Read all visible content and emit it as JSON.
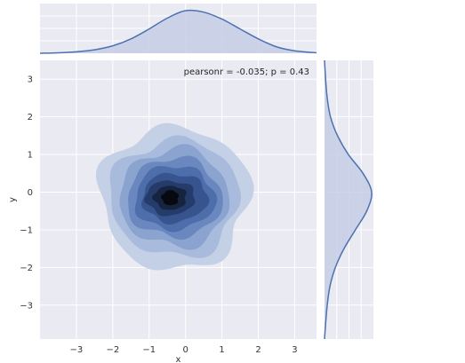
{
  "chart_data": {
    "type": "kde_joint",
    "annotation": "pearsonr = -0.035; p = 0.43",
    "xlabel": "x",
    "ylabel": "y",
    "xlim": [
      -4,
      3.6
    ],
    "ylim": [
      -3.9,
      3.5
    ],
    "x_ticks": [
      -3,
      -2,
      -1,
      0,
      1,
      2,
      3
    ],
    "y_ticks": [
      -3,
      -2,
      -1,
      0,
      1,
      2,
      3
    ],
    "grid": true,
    "colors": {
      "panel_bg": "#eaeaf2",
      "grid": "#ffffff",
      "line": "#4c72b0",
      "fill": "#c5cde5",
      "levels": [
        "#c4d0e6",
        "#a9bbdc",
        "#8aa3cf",
        "#6a88bf",
        "#4d6eaa",
        "#37548e",
        "#253c6b",
        "#16243f",
        "#06090f"
      ]
    },
    "joint_kde": {
      "center": [
        -0.3,
        -0.15
      ],
      "levels_radii": [
        {
          "rx": 2.05,
          "ry": 1.9
        },
        {
          "rx": 1.78,
          "ry": 1.55
        },
        {
          "rx": 1.5,
          "ry": 1.3
        },
        {
          "rx": 1.3,
          "ry": 1.05
        },
        {
          "rx": 1.1,
          "ry": 0.85
        },
        {
          "rx": 0.9,
          "ry": 0.65
        },
        {
          "rx": 0.68,
          "ry": 0.46
        },
        {
          "rx": 0.45,
          "ry": 0.32
        },
        {
          "rx": 0.23,
          "ry": 0.2
        }
      ]
    },
    "marginal_x": {
      "x": [
        -4.0,
        -3.5,
        -3.0,
        -2.5,
        -2.0,
        -1.5,
        -1.0,
        -0.5,
        0.0,
        0.5,
        1.0,
        1.5,
        2.0,
        2.5,
        3.0,
        3.6
      ],
      "density": [
        0.0,
        0.01,
        0.03,
        0.07,
        0.15,
        0.29,
        0.49,
        0.71,
        0.86,
        0.83,
        0.69,
        0.49,
        0.29,
        0.13,
        0.05,
        0.01
      ]
    },
    "marginal_y": {
      "y": [
        -3.9,
        -3.5,
        -3.0,
        -2.5,
        -2.0,
        -1.5,
        -1.0,
        -0.5,
        0.0,
        0.5,
        1.0,
        1.5,
        2.0,
        2.5,
        3.0,
        3.5
      ],
      "density": [
        0.0,
        0.02,
        0.05,
        0.1,
        0.2,
        0.36,
        0.57,
        0.78,
        0.87,
        0.71,
        0.44,
        0.24,
        0.11,
        0.05,
        0.02,
        0.0
      ]
    }
  }
}
